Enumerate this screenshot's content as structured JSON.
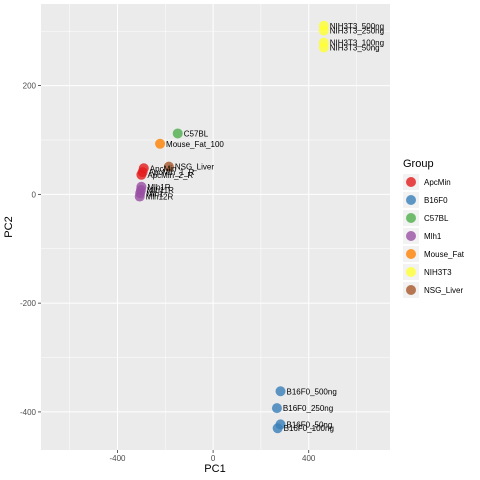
{
  "chart_data": {
    "type": "scatter",
    "xlabel": "PC1",
    "ylabel": "PC2",
    "xlim": [
      -720,
      740
    ],
    "ylim": [
      -470,
      350
    ],
    "x_ticks": [
      -400,
      0,
      400
    ],
    "y_ticks": [
      -400,
      -200,
      0,
      200
    ],
    "legend": {
      "title": "Group",
      "placement": "right",
      "items": [
        {
          "name": "ApcMin",
          "color": "#E41A1C"
        },
        {
          "name": "B16F0",
          "color": "#377EB8"
        },
        {
          "name": "C57BL",
          "color": "#4DAF4A"
        },
        {
          "name": "Mlh1",
          "color": "#984EA3"
        },
        {
          "name": "Mouse_Fat",
          "color": "#FF7F00"
        },
        {
          "name": "NIH3T3",
          "color": "#FFFF33"
        },
        {
          "name": "NSG_Liver",
          "color": "#A65628"
        }
      ]
    },
    "points": [
      {
        "label": "NIH3T3_500ng",
        "group": "NIH3T3",
        "x": 463,
        "y": 310
      },
      {
        "label": "NIH3T3_250ng",
        "group": "NIH3T3",
        "x": 463,
        "y": 301
      },
      {
        "label": "NIH3T3_100ng",
        "group": "NIH3T3",
        "x": 463,
        "y": 279
      },
      {
        "label": "NIH3T3_50ng",
        "group": "NIH3T3",
        "x": 463,
        "y": 270
      },
      {
        "label": "C57BL",
        "group": "C57BL",
        "x": -148,
        "y": 112
      },
      {
        "label": "Mouse_Fat_100",
        "group": "Mouse_Fat",
        "x": -222,
        "y": 93
      },
      {
        "label": "NSG_Liver",
        "group": "NSG_Liver",
        "x": -185,
        "y": 51
      },
      {
        "label": "ApcMin",
        "group": "ApcMin",
        "x": -290,
        "y": 48
      },
      {
        "label": "ApcMin_1_R",
        "group": "ApcMin",
        "x": -295,
        "y": 41
      },
      {
        "label": "ApcMin_2_R",
        "group": "ApcMin",
        "x": -300,
        "y": 36
      },
      {
        "label": "Mlh1R",
        "group": "Mlh1",
        "x": -300,
        "y": 14
      },
      {
        "label": "Mlh11R",
        "group": "Mlh1",
        "x": -302,
        "y": 8
      },
      {
        "label": "Mlh1",
        "group": "Mlh1",
        "x": -305,
        "y": 2
      },
      {
        "label": "Mlh12R",
        "group": "Mlh1",
        "x": -307,
        "y": -4
      },
      {
        "label": "B16F0_500ng",
        "group": "B16F0",
        "x": 282,
        "y": -362
      },
      {
        "label": "B16F0_250ng",
        "group": "B16F0",
        "x": 267,
        "y": -393
      },
      {
        "label": "B16F0_50ng",
        "group": "B16F0",
        "x": 282,
        "y": -423
      },
      {
        "label": "B16F0_100ng",
        "group": "B16F0",
        "x": 270,
        "y": -430
      }
    ]
  }
}
